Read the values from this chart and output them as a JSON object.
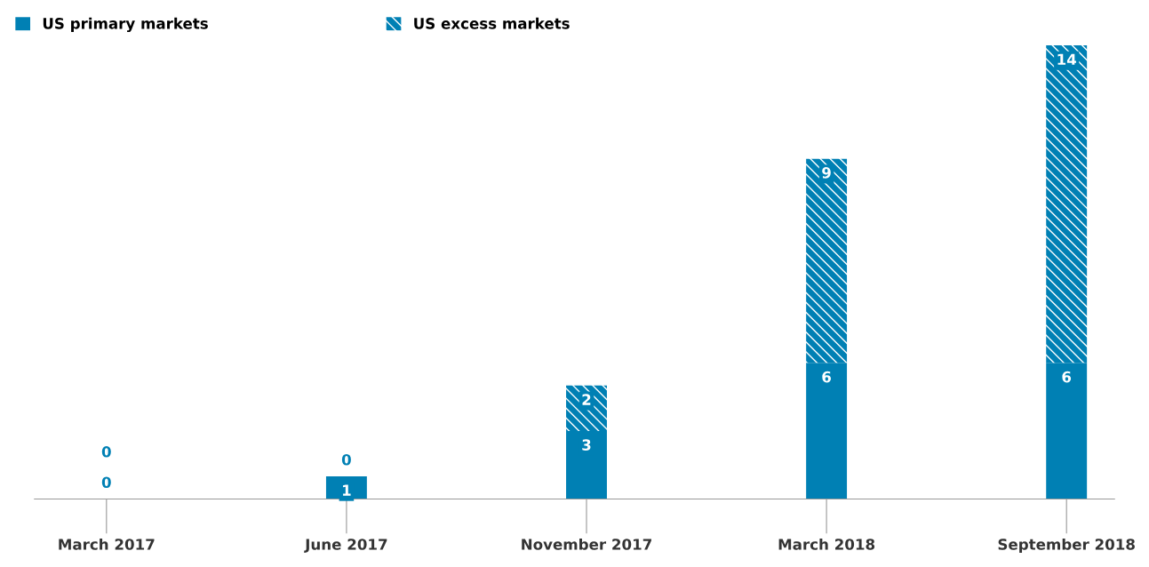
{
  "chart_data": {
    "type": "bar",
    "stacked": true,
    "data_labels": true,
    "legend": "top left",
    "grid": false,
    "categories": [
      "March 2017",
      "June 2017",
      "November 2017",
      "March 2018",
      "September 2018"
    ],
    "series": [
      {
        "name": "US primary markets",
        "color": "#0080b4",
        "values": [
          0,
          1,
          3,
          6,
          6
        ]
      },
      {
        "name": "US excess markets",
        "color": "#0080b4",
        "values": [
          0,
          0,
          2,
          9,
          14
        ]
      }
    ]
  }
}
